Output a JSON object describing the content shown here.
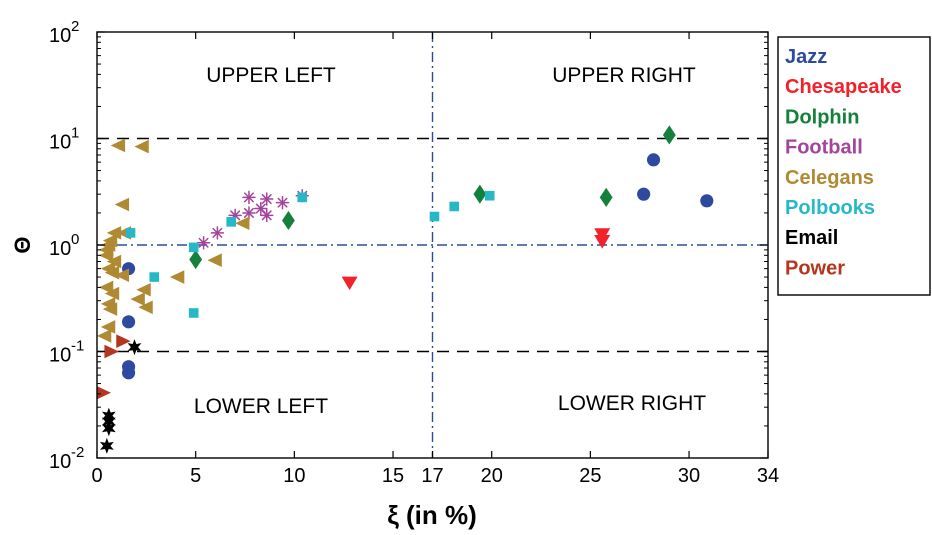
{
  "chart_data": {
    "type": "scatter",
    "xlabel": "ξ (in %)",
    "ylabel": "Θ",
    "y_scale": "log",
    "xlim": [
      0,
      34
    ],
    "ylim": [
      0.01,
      100
    ],
    "x_ticks": [
      0,
      5,
      10,
      15,
      17,
      20,
      25,
      30,
      34
    ],
    "x_tick_labels": [
      "0",
      "5",
      "10",
      "15",
      "17",
      "20",
      "25",
      "30",
      "34"
    ],
    "y_ticks": [
      0.01,
      0.1,
      1,
      10,
      100
    ],
    "y_tick_labels": [
      {
        "base": "10",
        "exp": "-2"
      },
      {
        "base": "10",
        "exp": "-1"
      },
      {
        "base": "10",
        "exp": "0"
      },
      {
        "base": "10",
        "exp": "1"
      },
      {
        "base": "10",
        "exp": "2"
      }
    ],
    "reference_lines": {
      "horizontal_dashed": [
        0.1,
        10
      ],
      "horizontal_dashdot": [
        1
      ],
      "vertical_dashdot": [
        17
      ]
    },
    "quadrant_labels": {
      "upper_left": "UPPER LEFT",
      "upper_right": "UPPER RIGHT",
      "lower_left": "LOWER LEFT",
      "lower_right": "LOWER RIGHT"
    },
    "legend_position": "outside-right",
    "series": [
      {
        "name": "Jazz",
        "color": "#2e4a9e",
        "marker": "circle",
        "points": [
          [
            1.6,
            0.6
          ],
          [
            1.6,
            0.19
          ],
          [
            1.6,
            0.072
          ],
          [
            1.6,
            0.063
          ],
          [
            27.7,
            3.0
          ],
          [
            28.2,
            6.3
          ],
          [
            30.9,
            2.6
          ]
        ]
      },
      {
        "name": "Chesapeake",
        "color": "#f2222b",
        "marker": "triangle-down",
        "points": [
          [
            12.8,
            0.44
          ],
          [
            25.6,
            1.25
          ],
          [
            25.6,
            1.08
          ]
        ]
      },
      {
        "name": "Dolphin",
        "color": "#14803c",
        "marker": "diamond",
        "points": [
          [
            5.0,
            0.73
          ],
          [
            9.7,
            1.7
          ],
          [
            19.4,
            3.0
          ],
          [
            25.8,
            2.8
          ],
          [
            29.0,
            10.8
          ]
        ]
      },
      {
        "name": "Football",
        "color": "#a4449c",
        "marker": "asterisk",
        "points": [
          [
            5.4,
            1.05
          ],
          [
            6.1,
            1.3
          ],
          [
            7.0,
            1.9
          ],
          [
            7.7,
            2.8
          ],
          [
            7.7,
            2.0
          ],
          [
            8.3,
            2.2
          ],
          [
            8.6,
            1.9
          ],
          [
            8.6,
            2.7
          ],
          [
            9.4,
            2.5
          ],
          [
            10.4,
            2.9
          ]
        ]
      },
      {
        "name": "Celegans",
        "color": "#b08a33",
        "marker": "triangle-left",
        "points": [
          [
            1.1,
            8.6
          ],
          [
            2.3,
            8.4
          ],
          [
            1.3,
            2.4
          ],
          [
            1.4,
            1.3
          ],
          [
            0.9,
            1.3
          ],
          [
            0.7,
            1.1
          ],
          [
            0.6,
            1.0
          ],
          [
            0.5,
            0.9
          ],
          [
            0.5,
            0.8
          ],
          [
            0.9,
            0.7
          ],
          [
            0.6,
            0.6
          ],
          [
            0.8,
            0.55
          ],
          [
            1.3,
            0.52
          ],
          [
            0.5,
            0.4
          ],
          [
            0.8,
            0.35
          ],
          [
            0.6,
            0.28
          ],
          [
            0.7,
            0.25
          ],
          [
            2.5,
            0.26
          ],
          [
            2.1,
            0.31
          ],
          [
            2.4,
            0.38
          ],
          [
            4.1,
            0.5
          ],
          [
            6.0,
            0.72
          ],
          [
            7.4,
            1.6
          ],
          [
            0.6,
            0.17
          ],
          [
            0.4,
            0.14
          ]
        ]
      },
      {
        "name": "Polbooks",
        "color": "#27b8c8",
        "marker": "square",
        "points": [
          [
            1.7,
            1.3
          ],
          [
            2.9,
            0.5
          ],
          [
            4.9,
            0.23
          ],
          [
            4.9,
            0.95
          ],
          [
            6.8,
            1.65
          ],
          [
            10.4,
            2.8
          ],
          [
            17.1,
            1.85
          ],
          [
            18.1,
            2.3
          ],
          [
            19.9,
            2.9
          ]
        ]
      },
      {
        "name": "Email",
        "color": "#000000",
        "marker": "star",
        "points": [
          [
            1.9,
            0.11
          ],
          [
            0.6,
            0.025
          ],
          [
            0.6,
            0.022
          ],
          [
            0.6,
            0.019
          ],
          [
            0.5,
            0.013
          ]
        ]
      },
      {
        "name": "Power",
        "color": "#b5361e",
        "marker": "triangle-right",
        "points": [
          [
            0.3,
            0.041
          ],
          [
            0.7,
            0.1
          ],
          [
            1.3,
            0.125
          ]
        ]
      }
    ]
  }
}
